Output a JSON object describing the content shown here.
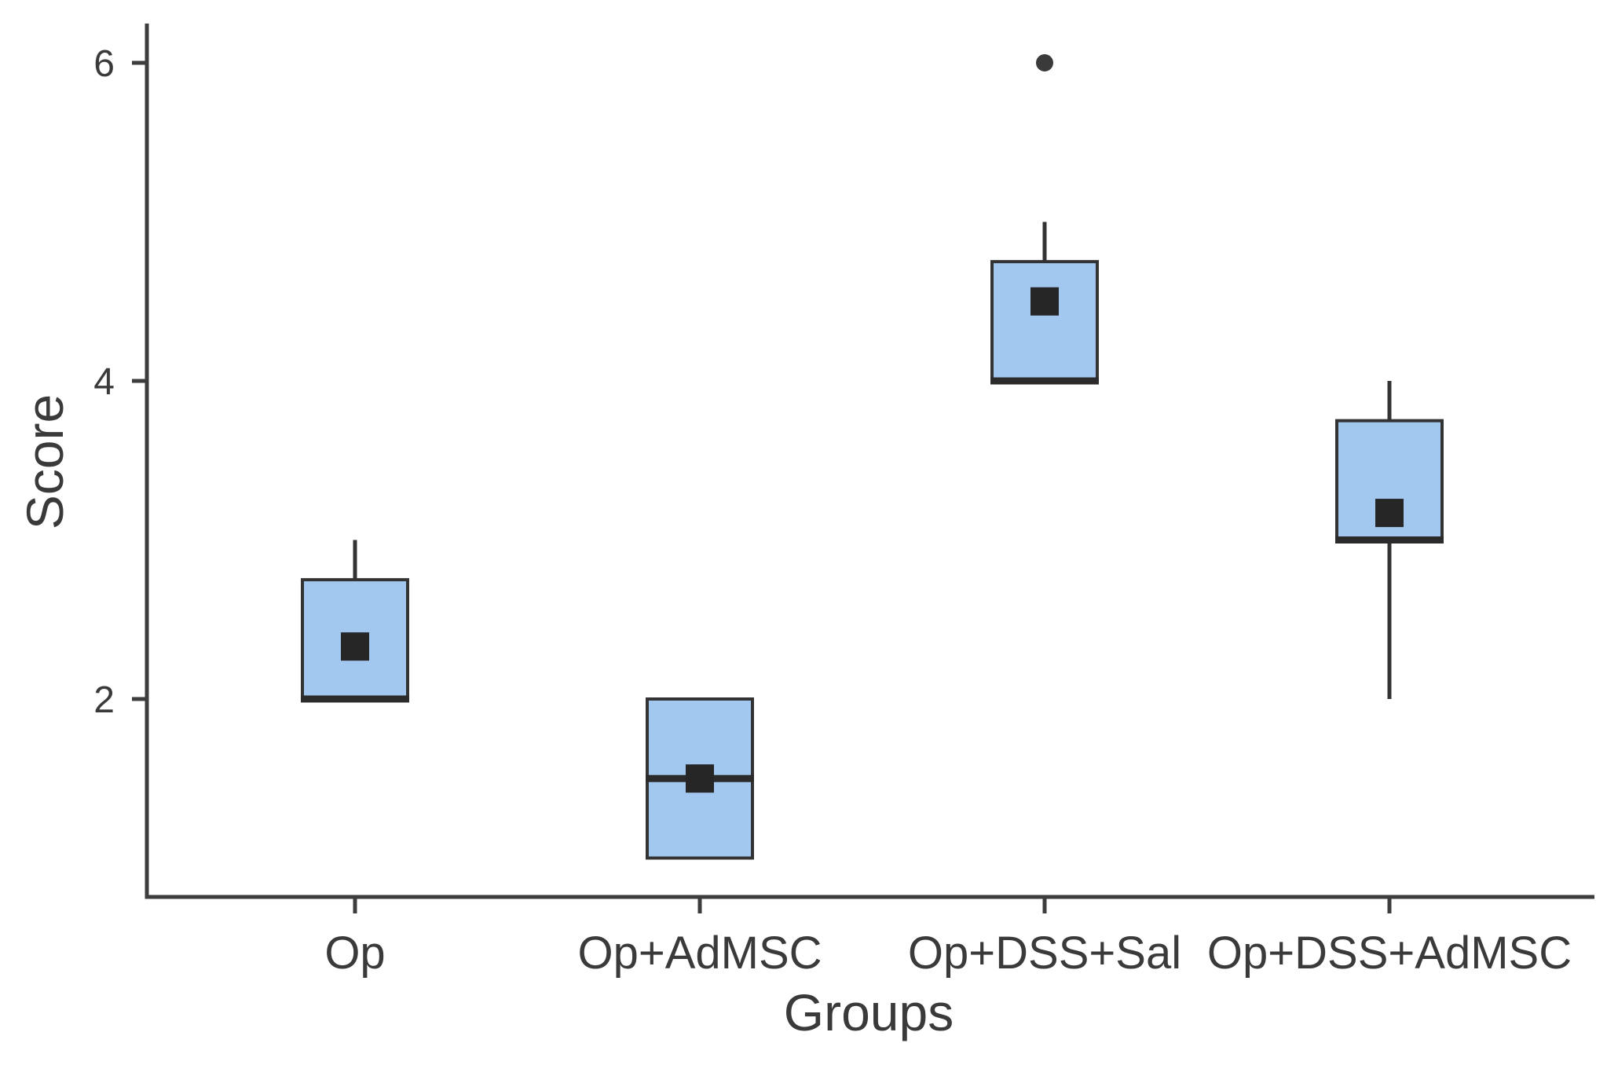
{
  "chart_data": {
    "type": "boxplot",
    "title": "",
    "xlabel": "Groups",
    "ylabel": "Score",
    "yticks": [
      2,
      4,
      6
    ],
    "ylim": [
      0.76,
      6.25
    ],
    "grid": false,
    "legend": "none",
    "categories": [
      "Op",
      "Op+AdMSC",
      "Op+DSS+Sal",
      "Op+DSS+AdMSC"
    ],
    "groups": [
      {
        "label": "Op",
        "whisker_low": 2.0,
        "q1": 2.0,
        "median": 2.0,
        "q3": 2.75,
        "whisker_high": 3.0,
        "mean": 2.33,
        "outliers": []
      },
      {
        "label": "Op+AdMSC",
        "whisker_low": 1.0,
        "q1": 1.0,
        "median": 1.5,
        "q3": 2.0,
        "whisker_high": 2.0,
        "mean": 1.5,
        "outliers": []
      },
      {
        "label": "Op+DSS+Sal",
        "whisker_low": 4.0,
        "q1": 4.0,
        "median": 4.0,
        "q3": 4.75,
        "whisker_high": 5.0,
        "mean": 4.5,
        "outliers": [
          6.0
        ]
      },
      {
        "label": "Op+DSS+AdMSC",
        "whisker_low": 2.0,
        "q1": 3.0,
        "median": 3.0,
        "q3": 3.75,
        "whisker_high": 4.0,
        "mean": 3.17,
        "outliers": []
      }
    ],
    "style": {
      "box_fill": "#a3c8f0",
      "box_stroke": "#333333",
      "median_color": "#2b2b2b",
      "mean_marker": "filled-square",
      "mean_color": "#262626",
      "outlier_marker": "filled-circle",
      "outlier_color": "#3a3a3a",
      "axis_color": "#3d3d3d",
      "text_color": "#3a3a3a",
      "background": "#ffffff"
    }
  }
}
